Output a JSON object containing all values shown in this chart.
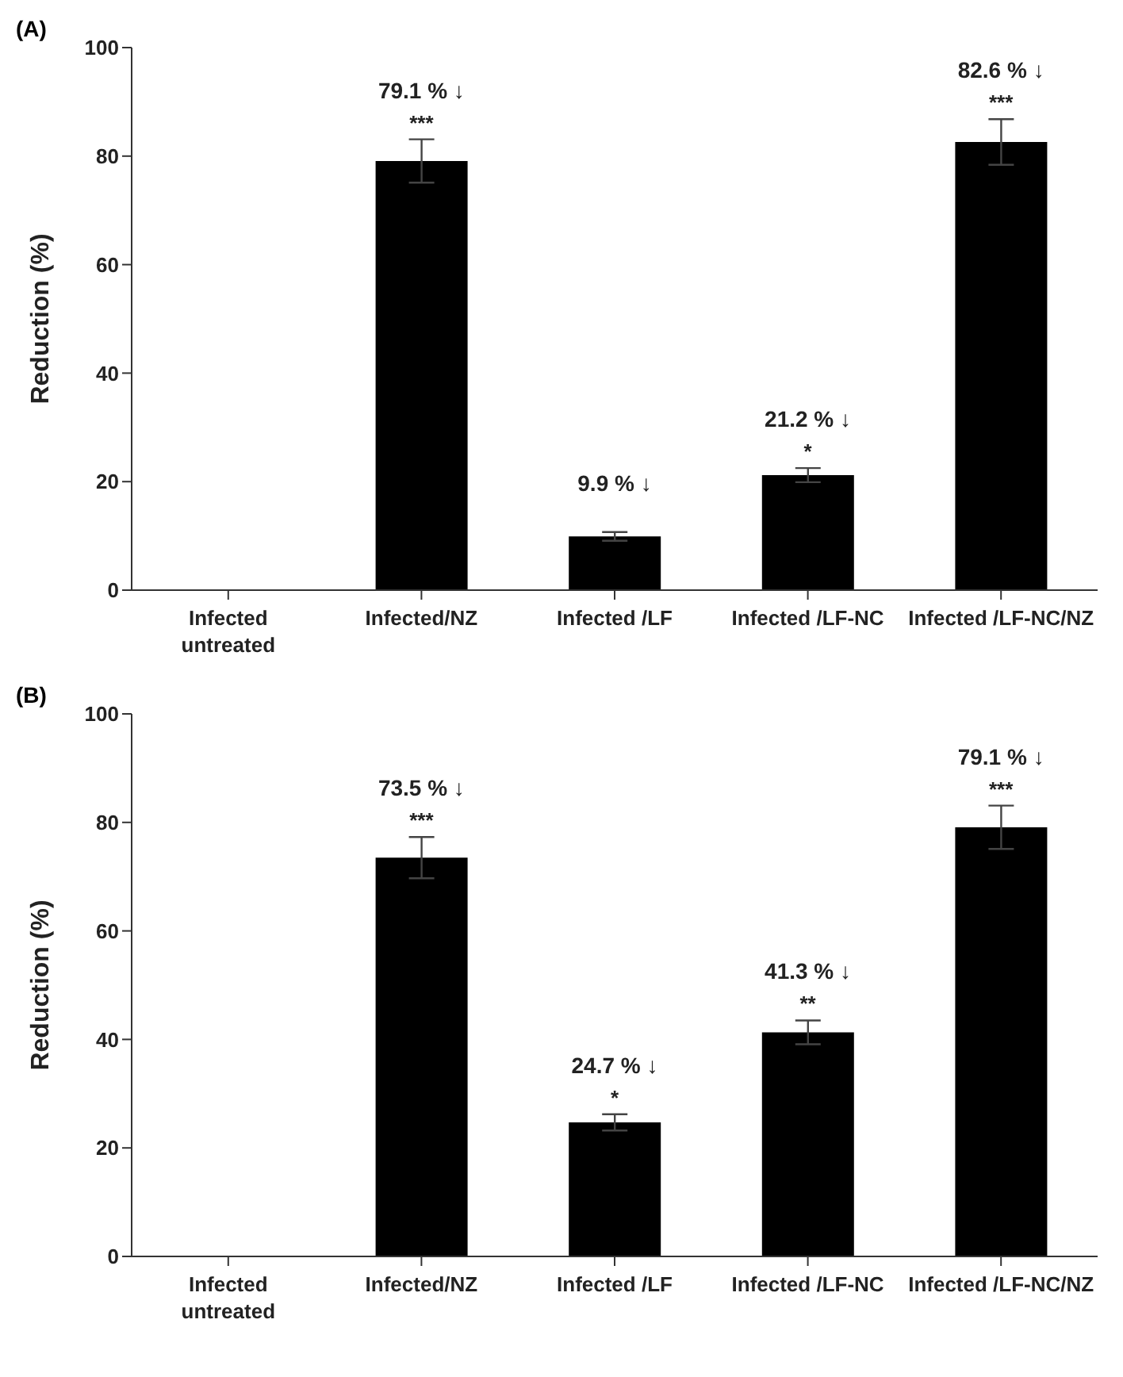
{
  "chart_data": [
    {
      "type": "bar",
      "title": "(A)",
      "ylabel": "Reduction (%)",
      "categories": [
        "Infected\nuntreated",
        "Infected/NZ",
        "Infected /LF",
        "Infected /LF-NC",
        "Infected /LF-NC/NZ"
      ],
      "values": [
        0,
        79.1,
        9.9,
        21.2,
        82.6
      ],
      "errors": [
        null,
        4,
        0.8,
        1.3,
        4.2
      ],
      "value_labels": [
        null,
        "79.1 % ↓",
        "9.9 % ↓",
        "21.2 % ↓",
        "82.6 % ↓"
      ],
      "color": "#000000",
      "ylim": [
        0,
        100
      ],
      "yticks": [
        0,
        20,
        40,
        60,
        80,
        100
      ],
      "annotations": [
        {
          "text": "***",
          "x": "Infected/NZ",
          "y": 83.1
        },
        {
          "text": "*",
          "x": "Infected /LF-NC",
          "y": 22.5
        },
        {
          "text": "***",
          "x": "Infected /LF-NC/NZ",
          "y": 86.8
        }
      ]
    },
    {
      "type": "bar",
      "title": "(B)",
      "ylabel": "Reduction (%)",
      "categories": [
        "Infected\nuntreated",
        "Infected/NZ",
        "Infected /LF",
        "Infected /LF-NC",
        "Infected /LF-NC/NZ"
      ],
      "values": [
        0,
        73.5,
        24.7,
        41.3,
        79.1
      ],
      "errors": [
        null,
        3.8,
        1.5,
        2.2,
        4
      ],
      "value_labels": [
        null,
        "73.5 % ↓",
        "24.7 % ↓",
        "41.3 % ↓",
        "79.1 % ↓"
      ],
      "color": "#000000",
      "ylim": [
        0,
        100
      ],
      "yticks": [
        0,
        20,
        40,
        60,
        80,
        100
      ],
      "annotations": [
        {
          "text": "***",
          "x": "Infected/NZ",
          "y": 77.3
        },
        {
          "text": "*",
          "x": "Infected /LF",
          "y": 26.2
        },
        {
          "text": "**",
          "x": "Infected /LF-NC",
          "y": 43.5
        },
        {
          "text": "***",
          "x": "Infected /LF-NC/NZ",
          "y": 83.1
        }
      ]
    }
  ]
}
